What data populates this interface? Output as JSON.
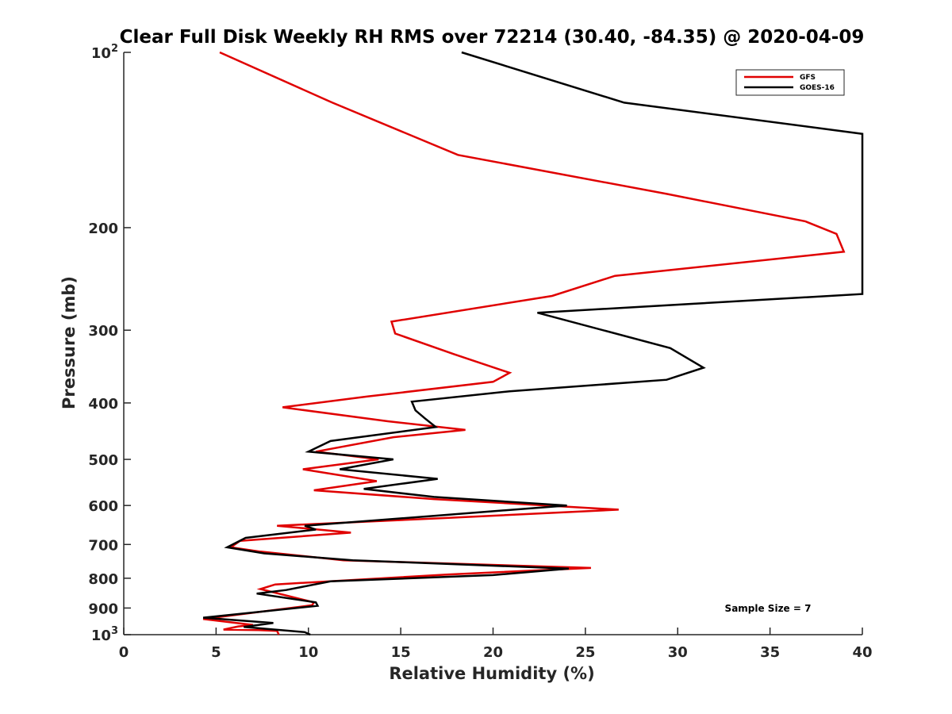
{
  "chart_data": {
    "type": "line",
    "title": "Clear Full Disk Weekly RH RMS over 72214 (30.40, -84.35) @ 2020-04-09",
    "xlabel": "Relative Humidity (%)",
    "ylabel": "Pressure (mb)",
    "xlim": [
      0,
      40
    ],
    "ylim": [
      100,
      1000
    ],
    "yscale": "log",
    "yreversed": true,
    "grid": false,
    "legend_position": "top-right",
    "x_ticks": [
      {
        "value": 0,
        "label": "0"
      },
      {
        "value": 5,
        "label": "5"
      },
      {
        "value": 10,
        "label": "10"
      },
      {
        "value": 15,
        "label": "15"
      },
      {
        "value": 20,
        "label": "20"
      },
      {
        "value": 25,
        "label": "25"
      },
      {
        "value": 30,
        "label": "30"
      },
      {
        "value": 35,
        "label": "35"
      },
      {
        "value": 40,
        "label": "40"
      }
    ],
    "y_ticks": [
      {
        "value": 100,
        "base": "10",
        "exp": "2"
      },
      {
        "value": 200,
        "label": "200"
      },
      {
        "value": 300,
        "label": "300"
      },
      {
        "value": 400,
        "label": "400"
      },
      {
        "value": 500,
        "label": "500"
      },
      {
        "value": 600,
        "label": "600"
      },
      {
        "value": 700,
        "label": "700"
      },
      {
        "value": 800,
        "label": "800"
      },
      {
        "value": 900,
        "label": "900"
      },
      {
        "value": 1000,
        "base": "10",
        "exp": "3"
      }
    ],
    "annotation": "Sample Size = 7",
    "series": [
      {
        "name": "GFS",
        "color": "#e00000",
        "points": [
          [
            5.2,
            100
          ],
          [
            11.3,
            122
          ],
          [
            18.1,
            150
          ],
          [
            29.4,
            175
          ],
          [
            36.9,
            195
          ],
          [
            38.6,
            205
          ],
          [
            39.0,
            220
          ],
          [
            26.6,
            242
          ],
          [
            23.2,
            262
          ],
          [
            14.5,
            290
          ],
          [
            14.7,
            304
          ],
          [
            17.9,
            330
          ],
          [
            20.9,
            355
          ],
          [
            20.0,
            368
          ],
          [
            13.2,
            390
          ],
          [
            8.6,
            407
          ],
          [
            14.3,
            430
          ],
          [
            18.5,
            445
          ],
          [
            14.6,
            458
          ],
          [
            10.4,
            485
          ],
          [
            13.8,
            500
          ],
          [
            9.7,
            520
          ],
          [
            13.7,
            545
          ],
          [
            10.3,
            565
          ],
          [
            16.8,
            585
          ],
          [
            26.8,
            610
          ],
          [
            17.6,
            630
          ],
          [
            8.3,
            650
          ],
          [
            12.3,
            668
          ],
          [
            6.3,
            690
          ],
          [
            5.8,
            708
          ],
          [
            7.4,
            720
          ],
          [
            11.9,
            745
          ],
          [
            25.3,
            768
          ],
          [
            17.6,
            788
          ],
          [
            8.2,
            820
          ],
          [
            7.4,
            835
          ],
          [
            10.3,
            880
          ],
          [
            10.2,
            890
          ],
          [
            4.3,
            940
          ],
          [
            7.0,
            962
          ],
          [
            6.2,
            968
          ],
          [
            5.4,
            980
          ],
          [
            7.3,
            982
          ],
          [
            8.3,
            985
          ],
          [
            8.4,
            1000
          ]
        ]
      },
      {
        "name": "GOES-16",
        "color": "#000000",
        "points": [
          [
            18.3,
            100
          ],
          [
            27.1,
            122
          ],
          [
            40.0,
            138
          ],
          [
            40.0,
            260
          ],
          [
            22.4,
            280
          ],
          [
            29.6,
            322
          ],
          [
            31.4,
            348
          ],
          [
            29.4,
            365
          ],
          [
            20.9,
            382
          ],
          [
            15.6,
            398
          ],
          [
            15.8,
            412
          ],
          [
            16.3,
            425
          ],
          [
            16.9,
            440
          ],
          [
            11.2,
            465
          ],
          [
            10.0,
            485
          ],
          [
            14.6,
            500
          ],
          [
            11.7,
            520
          ],
          [
            17.0,
            540
          ],
          [
            13.0,
            562
          ],
          [
            16.8,
            580
          ],
          [
            24.0,
            600
          ],
          [
            16.8,
            625
          ],
          [
            9.8,
            650
          ],
          [
            10.4,
            660
          ],
          [
            6.6,
            682
          ],
          [
            5.6,
            708
          ],
          [
            7.6,
            725
          ],
          [
            12.4,
            745
          ],
          [
            24.1,
            770
          ],
          [
            20.0,
            790
          ],
          [
            11.2,
            810
          ],
          [
            8.8,
            838
          ],
          [
            7.2,
            850
          ],
          [
            10.4,
            880
          ],
          [
            10.5,
            892
          ],
          [
            4.3,
            935
          ],
          [
            8.1,
            955
          ],
          [
            6.5,
            970
          ],
          [
            9.8,
            990
          ],
          [
            10.1,
            1000
          ]
        ]
      }
    ]
  }
}
